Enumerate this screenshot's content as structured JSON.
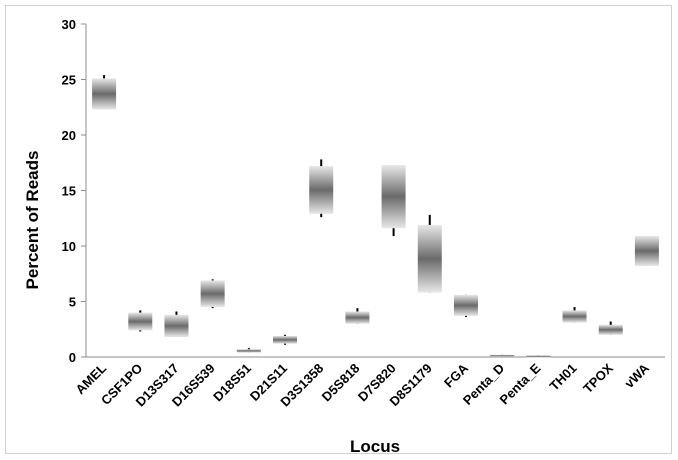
{
  "chart_data": {
    "type": "box",
    "title": "",
    "xlabel": "Locus",
    "ylabel": "Percent of Reads",
    "ylim": [
      0,
      30
    ],
    "yticks": [
      0,
      5,
      10,
      15,
      20,
      25,
      30
    ],
    "grid": false,
    "legend": "none",
    "categories": [
      "AMEL",
      "CSF1PO",
      "D13S317",
      "D16S539",
      "D18S51",
      "D21S11",
      "D3S1358",
      "D5S818",
      "D7S820",
      "D8S1179",
      "FGA",
      "Penta_D",
      "Penta_E",
      "TH01",
      "TPOX",
      "vWA"
    ],
    "series": [
      {
        "box_low": [
          22.3,
          2.4,
          1.8,
          4.5,
          0.4,
          1.2,
          12.9,
          3.0,
          11.6,
          5.8,
          3.7,
          0.05,
          0.05,
          3.1,
          2.0,
          8.2
        ],
        "box_high": [
          25.1,
          4.0,
          3.8,
          6.9,
          0.7,
          1.9,
          17.2,
          4.1,
          17.3,
          11.9,
          5.6,
          0.2,
          0.15,
          4.2,
          2.9,
          10.9
        ],
        "whisker_low": [
          22.3,
          2.3,
          1.8,
          4.4,
          0.4,
          1.1,
          12.6,
          3.0,
          10.9,
          5.8,
          3.6,
          0.05,
          0.05,
          3.1,
          2.0,
          8.2
        ],
        "whisker_high": [
          25.4,
          4.2,
          4.1,
          7.0,
          0.8,
          2.0,
          17.8,
          4.4,
          17.3,
          12.8,
          5.6,
          0.2,
          0.15,
          4.5,
          3.2,
          10.9
        ]
      }
    ],
    "colors": {
      "box_light": "#e8e8e8",
      "box_dark": "#6a6a6a",
      "whisker": "#000000",
      "axis": "#8c8c8c"
    }
  }
}
